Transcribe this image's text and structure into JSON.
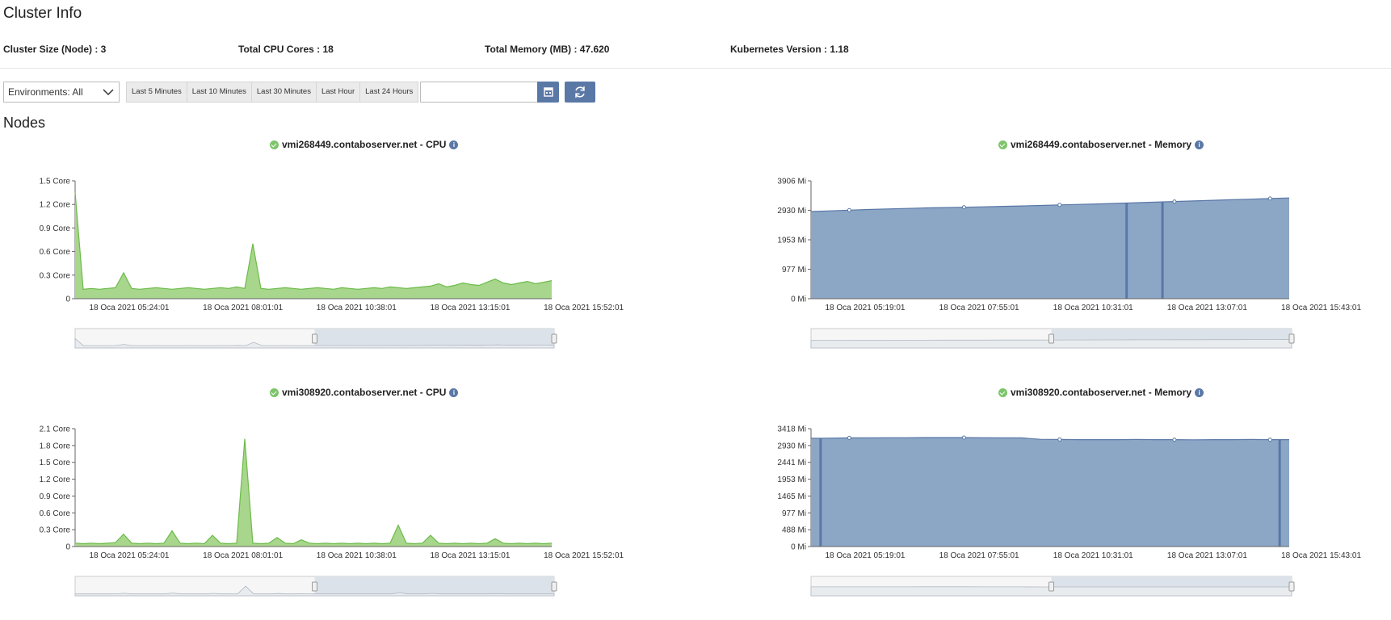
{
  "page": {
    "title": "Cluster Info",
    "nodes_heading": "Nodes"
  },
  "stats": {
    "cluster_size": "Cluster Size (Node) : 3",
    "cpu_cores": "Total CPU Cores : 18",
    "memory": "Total Memory (MB) : 47.620",
    "k8s_version": "Kubernetes Version : 1.18"
  },
  "toolbar": {
    "environment": "Environments: All",
    "ranges": [
      "Last 5 Minutes",
      "Last 10 Minutes",
      "Last 30 Minutes",
      "Last Hour",
      "Last 24 Hours"
    ],
    "date_value": "",
    "calendar_icon": "calendar-icon",
    "refresh_icon": "refresh-icon"
  },
  "colors": {
    "cpu_fill": "#a8d68c",
    "cpu_line": "#6cbb4a",
    "mem_fill": "#8ca6c6",
    "mem_line": "#5a78a6",
    "button": "#5a78a6"
  },
  "chart_data": [
    {
      "type": "area",
      "title": "vmi268449.contaboserver.net - CPU",
      "x_ticks": [
        "18 Oca 2021 05:24:01",
        "18 Oca 2021 08:01:01",
        "18 Oca 2021 10:38:01",
        "18 Oca 2021 13:15:01",
        "18 Oca 2021 15:52:01"
      ],
      "y_ticks": [
        "0",
        "0.3 Core",
        "0.6 Core",
        "0.9 Core",
        "1.2 Core",
        "1.5 Core"
      ],
      "ylim": [
        0,
        1.5
      ],
      "series": [
        {
          "values": [
            1.35,
            0.12,
            0.13,
            0.12,
            0.13,
            0.14,
            0.33,
            0.13,
            0.12,
            0.13,
            0.14,
            0.13,
            0.12,
            0.13,
            0.14,
            0.13,
            0.12,
            0.13,
            0.14,
            0.13,
            0.15,
            0.13,
            0.7,
            0.13,
            0.12,
            0.13,
            0.14,
            0.13,
            0.12,
            0.13,
            0.14,
            0.13,
            0.12,
            0.14,
            0.13,
            0.12,
            0.13,
            0.14,
            0.13,
            0.15,
            0.14,
            0.13,
            0.14,
            0.15,
            0.16,
            0.19,
            0.15,
            0.17,
            0.2,
            0.18,
            0.17,
            0.21,
            0.25,
            0.2,
            0.18,
            0.2,
            0.22,
            0.19,
            0.21,
            0.23
          ]
        }
      ]
    },
    {
      "type": "area",
      "title": "vmi268449.contaboserver.net - Memory",
      "x_ticks": [
        "18 Oca 2021 05:19:01",
        "18 Oca 2021 07:55:01",
        "18 Oca 2021 10:31:01",
        "18 Oca 2021 13:07:01",
        "18 Oca 2021 15:43:01"
      ],
      "y_ticks": [
        "0 Mi",
        "977 Mi",
        "1953 Mi",
        "2930 Mi",
        "3906 Mi"
      ],
      "ylim": [
        0,
        3906
      ],
      "series": [
        {
          "values": [
            2890,
            2910,
            2935,
            2955,
            2975,
            2990,
            3010,
            3020,
            3030,
            3045,
            3060,
            3075,
            3090,
            3110,
            3125,
            3140,
            3160,
            3180,
            3200,
            3220,
            3240,
            3260,
            3280,
            3300,
            3320,
            3340
          ]
        }
      ]
    },
    {
      "type": "area",
      "title": "vmi308920.contaboserver.net - CPU",
      "x_ticks": [
        "18 Oca 2021 05:24:01",
        "18 Oca 2021 08:01:01",
        "18 Oca 2021 10:38:01",
        "18 Oca 2021 13:15:01",
        "18 Oca 2021 15:52:01"
      ],
      "y_ticks": [
        "0",
        "0.3 Core",
        "0.6 Core",
        "0.9 Core",
        "1.2 Core",
        "1.5 Core",
        "1.8 Core",
        "2.1 Core"
      ],
      "ylim": [
        0,
        2.1
      ],
      "series": [
        {
          "values": [
            0.06,
            0.05,
            0.06,
            0.05,
            0.06,
            0.07,
            0.22,
            0.06,
            0.05,
            0.06,
            0.05,
            0.06,
            0.28,
            0.06,
            0.05,
            0.06,
            0.05,
            0.2,
            0.06,
            0.05,
            0.06,
            1.92,
            0.06,
            0.05,
            0.06,
            0.16,
            0.06,
            0.05,
            0.12,
            0.06,
            0.05,
            0.06,
            0.05,
            0.06,
            0.05,
            0.06,
            0.05,
            0.06,
            0.05,
            0.06,
            0.38,
            0.06,
            0.05,
            0.06,
            0.2,
            0.06,
            0.05,
            0.06,
            0.05,
            0.06,
            0.05,
            0.06,
            0.14,
            0.06,
            0.05,
            0.06,
            0.05,
            0.06,
            0.05,
            0.06
          ]
        }
      ]
    },
    {
      "type": "area",
      "title": "vmi308920.contaboserver.net - Memory",
      "x_ticks": [
        "18 Oca 2021 05:19:01",
        "18 Oca 2021 07:55:01",
        "18 Oca 2021 10:31:01",
        "18 Oca 2021 13:07:01",
        "18 Oca 2021 15:43:01"
      ],
      "y_ticks": [
        "0 Mi",
        "488 Mi",
        "977 Mi",
        "1465 Mi",
        "1953 Mi",
        "2441 Mi",
        "2930 Mi",
        "3418 Mi"
      ],
      "ylim": [
        0,
        3418
      ],
      "series": [
        {
          "values": [
            3140,
            3145,
            3150,
            3150,
            3155,
            3155,
            3160,
            3160,
            3160,
            3155,
            3150,
            3150,
            3110,
            3105,
            3100,
            3100,
            3100,
            3105,
            3100,
            3100,
            3095,
            3100,
            3100,
            3105,
            3100,
            3100
          ]
        }
      ]
    }
  ]
}
